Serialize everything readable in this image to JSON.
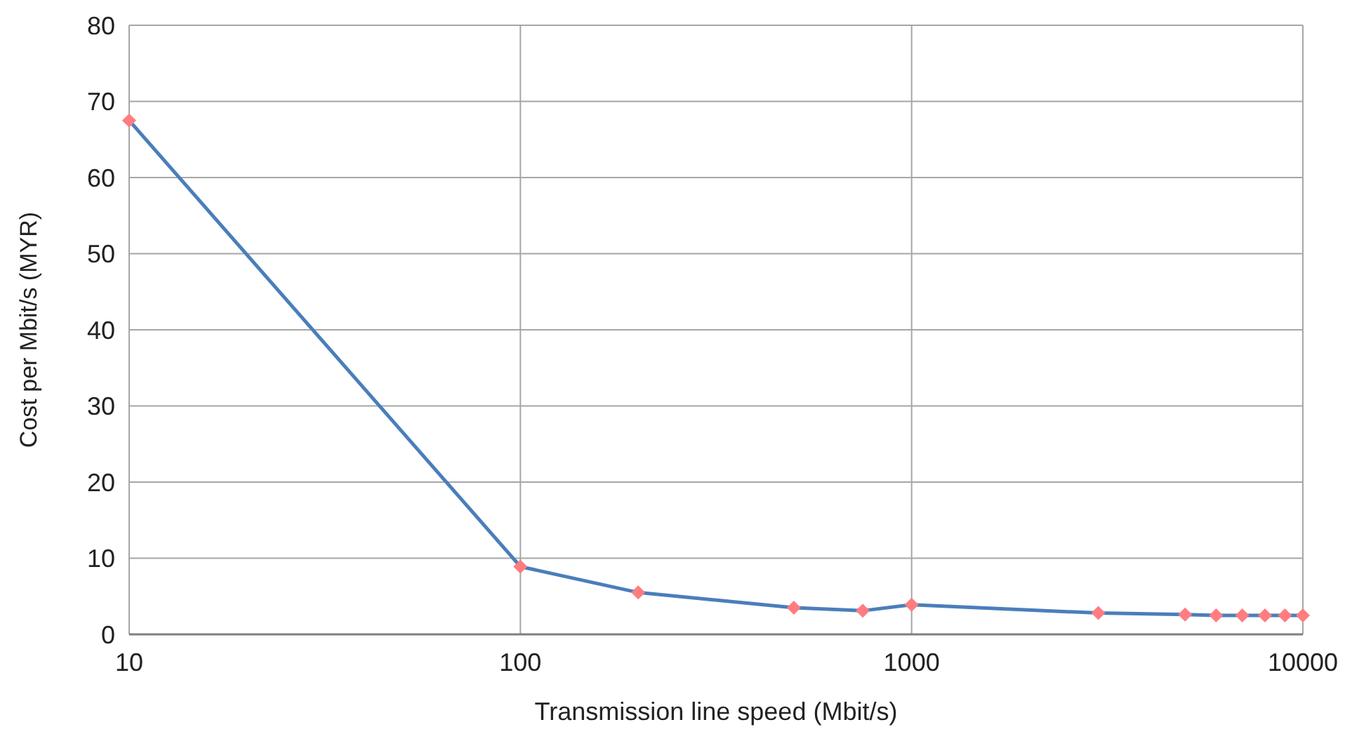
{
  "chart_data": {
    "type": "line",
    "xlabel": "Transmission line speed (Mbit/s)",
    "ylabel": "Cost per Mbit/s (MYR)",
    "log": "x",
    "grid": true,
    "marker": "diamond",
    "line_style": "solid",
    "xlim": [
      10,
      10000
    ],
    "xticks": [
      10,
      100,
      1000,
      10000
    ],
    "ylim": [
      0,
      80
    ],
    "yticks": [
      0,
      10,
      20,
      30,
      40,
      50,
      60,
      70,
      80
    ],
    "series": [
      {
        "color": "#4a7ebb",
        "colors": [
          "#ff7c80",
          "#ff7c80",
          "#ff7c80",
          "#ff7c80",
          "#ff7c80",
          "#ff7c80",
          "#ff7c80",
          "#ff7c80",
          "#ff7c80",
          "#ff7c80",
          "#ff7c80",
          "#ff7c80",
          "#ff7c80"
        ],
        "x": [
          10,
          100,
          200,
          500,
          750,
          1000,
          3000,
          5000,
          6000,
          7000,
          8000,
          9000,
          10000
        ],
        "values": [
          67.5,
          8.9,
          5.5,
          3.5,
          3.1,
          3.9,
          2.8,
          2.6,
          2.5,
          2.5,
          2.5,
          2.5,
          2.5
        ]
      }
    ]
  }
}
